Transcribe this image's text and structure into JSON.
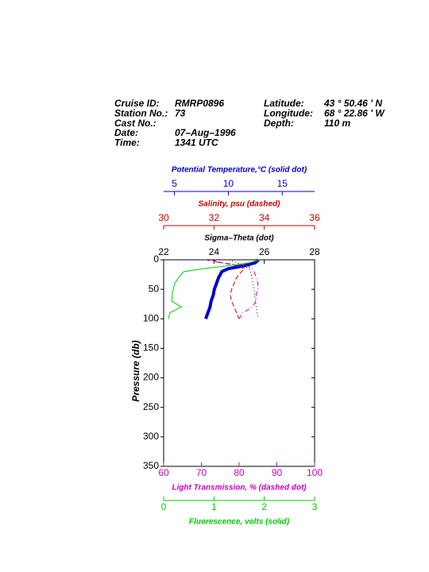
{
  "header": {
    "left": [
      {
        "label": "Cruise ID:",
        "value": "RMRP0896"
      },
      {
        "label": "Station No.:",
        "value": "73"
      },
      {
        "label": "Cast No.:"
      },
      {
        "label": "Date:",
        "value": "07–Aug–1996"
      },
      {
        "label": "Time:",
        "value": "1341 UTC"
      }
    ],
    "right": [
      {
        "label": "Latitude:",
        "value": "43 °  50.46 ' N"
      },
      {
        "label": "Longitude:",
        "value": "68 °  22.86 ' W"
      },
      {
        "label": "Depth:",
        "value": "110 m"
      }
    ]
  },
  "chart_data": {
    "type": "profile",
    "y_label": "Pressure (db)",
    "ylim": [
      0,
      350
    ],
    "yticks": [
      0,
      50,
      100,
      150,
      200,
      250,
      300,
      350
    ],
    "pressure": [
      0,
      5,
      10,
      15,
      20,
      30,
      40,
      50,
      60,
      70,
      80,
      90,
      100
    ],
    "series": [
      {
        "name": "Potential Temperature,°C (solid dot)",
        "color": "#0000cc",
        "dash": "solid",
        "width": 4,
        "xlim": [
          4,
          18
        ],
        "xticks": [
          5,
          10,
          15
        ],
        "values": [
          12.8,
          12.5,
          11.5,
          10.0,
          9.4,
          9.1,
          8.9,
          8.7,
          8.6,
          8.4,
          8.3,
          8.1,
          7.9
        ]
      },
      {
        "name": "Salinity, psu  (dashed)",
        "color": "#cc0000",
        "dash": "dashed",
        "width": 1,
        "xlim": [
          30,
          36
        ],
        "xticks": [
          30,
          32,
          34,
          36
        ],
        "values": [
          31.9,
          32.3,
          32.9,
          33.2,
          33.1,
          32.9,
          32.8,
          32.7,
          32.65,
          32.7,
          32.8,
          32.9,
          33.0
        ]
      },
      {
        "name": "Sigma–Theta (dot)",
        "color": "#000000",
        "dash": "dotted",
        "width": 1,
        "xlim": [
          22,
          28
        ],
        "xticks": [
          22,
          24,
          26,
          28
        ],
        "values": [
          24.6,
          24.9,
          25.2,
          25.4,
          25.45,
          25.5,
          25.55,
          25.6,
          25.62,
          25.65,
          25.68,
          25.72,
          25.75
        ]
      },
      {
        "name": "Light Transmission, % (dashed dot)",
        "color": "#cc00cc",
        "dash": "dashdot",
        "width": 1,
        "xlim": [
          60,
          100
        ],
        "xticks": [
          60,
          70,
          80,
          90,
          100
        ],
        "values": [
          71,
          75,
          82,
          83.5,
          84,
          84.5,
          85,
          85,
          84.5,
          84.5,
          83.5,
          81,
          80
        ]
      },
      {
        "name": "Fluorescence, volts (solid)",
        "color": "#00cc00",
        "dash": "solid",
        "width": 1,
        "xlim": [
          0,
          3
        ],
        "xticks": [
          0,
          1,
          2,
          3
        ],
        "values": [
          1.9,
          1.7,
          1.3,
          0.8,
          0.4,
          0.3,
          0.22,
          0.19,
          0.17,
          0.16,
          0.35,
          0.12,
          0.1
        ]
      }
    ]
  }
}
